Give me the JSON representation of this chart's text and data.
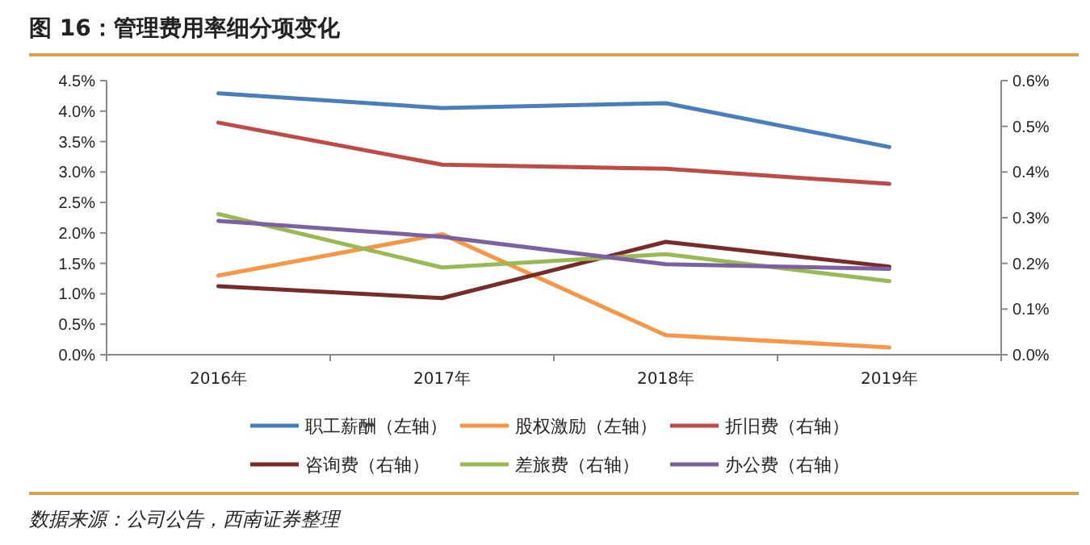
{
  "chart_data": {
    "type": "line",
    "title": "图 16：管理费用率细分项变化",
    "categories": [
      "2016年",
      "2017年",
      "2018年",
      "2019年"
    ],
    "series": [
      {
        "name": "职工薪酬（左轴）",
        "color": "#4a7ebb",
        "values": [
          4.29,
          4.05,
          4.13,
          3.41
        ]
      },
      {
        "name": "股权激励（左轴）",
        "color": "#f79646",
        "values": [
          1.3,
          1.98,
          0.32,
          0.12
        ]
      },
      {
        "name": "折旧费（右轴）",
        "color": "#be4b48",
        "axis": "y2",
        "values": [
          0.508,
          0.416,
          0.407,
          0.374
        ]
      },
      {
        "name": "咨询费（右轴）",
        "color": "#772c2a",
        "axis": "y2",
        "values": [
          0.15,
          0.124,
          0.247,
          0.193
        ]
      },
      {
        "name": "差旅费（右轴）",
        "color": "#98b954",
        "axis": "y2",
        "values": [
          0.308,
          0.191,
          0.22,
          0.161
        ]
      },
      {
        "name": "办公费（右轴）",
        "color": "#7d60a0",
        "axis": "y2",
        "values": [
          0.293,
          0.258,
          0.198,
          0.188
        ]
      }
    ],
    "ylim": [
      0,
      4.5
    ],
    "yticks": [
      {
        "value": 0,
        "label": "0.0%"
      },
      {
        "value": 0.5,
        "label": "0.5%"
      },
      {
        "value": 1,
        "label": "1.0%"
      },
      {
        "value": 1.5,
        "label": "1.5%"
      },
      {
        "value": 2,
        "label": "2.0%"
      },
      {
        "value": 2.5,
        "label": "2.5%"
      },
      {
        "value": 3,
        "label": "3.0%"
      },
      {
        "value": 3.5,
        "label": "3.5%"
      },
      {
        "value": 4,
        "label": "4.0%"
      },
      {
        "value": 4.5,
        "label": "4.5%"
      }
    ],
    "y2lim": [
      0,
      0.6
    ],
    "y2ticks": [
      {
        "value": 0,
        "label": "0.0%"
      },
      {
        "value": 0.1,
        "label": "0.1%"
      },
      {
        "value": 0.2,
        "label": "0.2%"
      },
      {
        "value": 0.3,
        "label": "0.3%"
      },
      {
        "value": 0.4,
        "label": "0.4%"
      },
      {
        "value": 0.5,
        "label": "0.5%"
      },
      {
        "value": 0.6,
        "label": "0.6%"
      }
    ],
    "legend": "bottom",
    "grid": false,
    "marker": "none",
    "line_style": "solid",
    "annotations": [
      "数据来源：公司公告，西南证券整理"
    ]
  }
}
